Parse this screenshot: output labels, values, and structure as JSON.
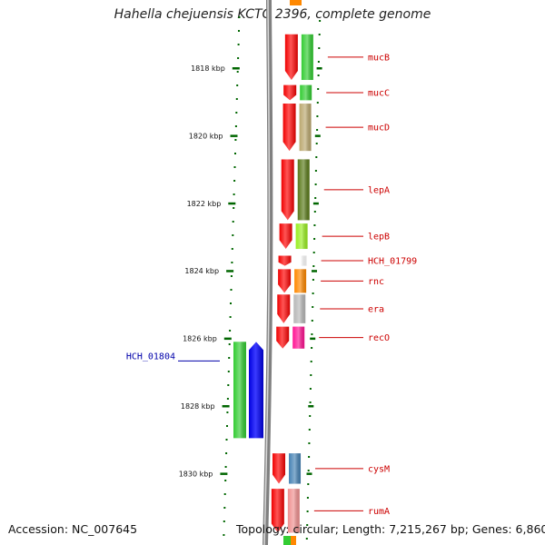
{
  "title": "Hahella chejuensis KCTC 2396, complete genome",
  "footer": {
    "accession": "Accession: NC_007645",
    "summary": "Topology: circular; Length: 7,215,267 bp; Genes: 6,860"
  },
  "colors": {
    "forward_label": "#cc0000",
    "reverse_label": "#0000aa",
    "tick": "#006600",
    "backbone": "#808080"
  },
  "kbp_ticks": [
    {
      "label": "1818 kbp",
      "kbp": 1818
    },
    {
      "label": "1820 kbp",
      "kbp": 1820
    },
    {
      "label": "1822 kbp",
      "kbp": 1822
    },
    {
      "label": "1824 kbp",
      "kbp": 1824
    },
    {
      "label": "1826 kbp",
      "kbp": 1826
    },
    {
      "label": "1828 kbp",
      "kbp": 1828
    },
    {
      "label": "1830 kbp",
      "kbp": 1830
    }
  ],
  "genes": [
    {
      "name": "mucB",
      "strand": "+",
      "start_kbp": 1817.0,
      "end_kbp": 1818.35,
      "color": "#33cc33"
    },
    {
      "name": "mucC",
      "strand": "+",
      "start_kbp": 1818.5,
      "end_kbp": 1818.95,
      "color": "#33cc33"
    },
    {
      "name": "mucD",
      "strand": "+",
      "start_kbp": 1819.05,
      "end_kbp": 1820.45,
      "color": "#bba870"
    },
    {
      "name": "lepA",
      "strand": "+",
      "start_kbp": 1820.7,
      "end_kbp": 1822.5,
      "color": "#5a7a1a"
    },
    {
      "name": "lepB",
      "strand": "+",
      "start_kbp": 1822.6,
      "end_kbp": 1823.35,
      "color": "#99ee22"
    },
    {
      "name": "HCH_01799",
      "strand": "+",
      "start_kbp": 1823.55,
      "end_kbp": 1823.85,
      "color": "#ffffff"
    },
    {
      "name": "rnc",
      "strand": "+",
      "start_kbp": 1823.95,
      "end_kbp": 1824.65,
      "color": "#ff8800"
    },
    {
      "name": "era",
      "strand": "+",
      "start_kbp": 1824.7,
      "end_kbp": 1825.55,
      "color": "#b8b8b8"
    },
    {
      "name": "recO",
      "strand": "+",
      "start_kbp": 1825.65,
      "end_kbp": 1826.3,
      "color": "#ff1493"
    },
    {
      "name": "HCH_01804",
      "strand": "-",
      "start_kbp": 1826.1,
      "end_kbp": 1828.95,
      "color": "#33cc33"
    },
    {
      "name": "cysM",
      "strand": "+",
      "start_kbp": 1829.4,
      "end_kbp": 1830.3,
      "color": "#4682b4"
    },
    {
      "name": "rumA",
      "strand": "+",
      "start_kbp": 1830.45,
      "end_kbp": 1831.75,
      "color": "#f09090"
    }
  ]
}
